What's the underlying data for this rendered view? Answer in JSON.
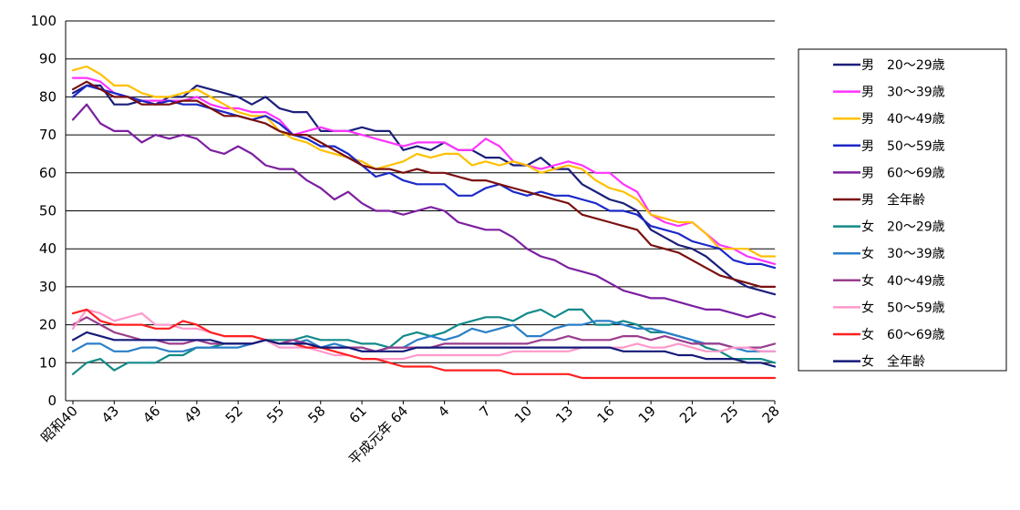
{
  "chart_data": {
    "type": "line",
    "title": "",
    "xlabel": "",
    "ylabel": "",
    "ylim": [
      0,
      100
    ],
    "yticks": [
      0,
      10,
      20,
      30,
      40,
      50,
      60,
      70,
      80,
      90,
      100
    ],
    "grid": "horizontal",
    "legend_position": "right",
    "x_tick_labels": [
      {
        "index": 0,
        "label": "昭和40"
      },
      {
        "index": 3,
        "label": "43"
      },
      {
        "index": 6,
        "label": "46"
      },
      {
        "index": 9,
        "label": "49"
      },
      {
        "index": 12,
        "label": "52"
      },
      {
        "index": 15,
        "label": "55"
      },
      {
        "index": 18,
        "label": "58"
      },
      {
        "index": 21,
        "label": "61"
      },
      {
        "index": 24,
        "label": "平成元年 64"
      },
      {
        "index": 27,
        "label": "4"
      },
      {
        "index": 30,
        "label": "7"
      },
      {
        "index": 33,
        "label": "10"
      },
      {
        "index": 36,
        "label": "13"
      },
      {
        "index": 39,
        "label": "16"
      },
      {
        "index": 42,
        "label": "19"
      },
      {
        "index": 45,
        "label": "22"
      },
      {
        "index": 48,
        "label": "25"
      },
      {
        "index": 51,
        "label": "28"
      }
    ],
    "series": [
      {
        "name": "男　20～29歳",
        "color": "#1b1f7a",
        "values": [
          81,
          83,
          83,
          78,
          78,
          79,
          78,
          80,
          80,
          83,
          82,
          81,
          80,
          78,
          80,
          77,
          76,
          76,
          71,
          71,
          71,
          72,
          71,
          71,
          66,
          67,
          66,
          68,
          66,
          66,
          64,
          64,
          62,
          62,
          64,
          61,
          61,
          57,
          55,
          53,
          52,
          50,
          45,
          43,
          41,
          40,
          38,
          35,
          32,
          30,
          29,
          28
        ]
      },
      {
        "name": "男　30～39歳",
        "color": "#ff33ff",
        "values": [
          85,
          85,
          84,
          81,
          80,
          79,
          79,
          79,
          79,
          80,
          78,
          77,
          77,
          76,
          76,
          74,
          70,
          71,
          72,
          71,
          71,
          70,
          69,
          68,
          67,
          68,
          68,
          68,
          66,
          66,
          69,
          67,
          63,
          62,
          61,
          62,
          63,
          62,
          60,
          60,
          57,
          55,
          49,
          47,
          46,
          47,
          44,
          41,
          40,
          38,
          37,
          36
        ]
      },
      {
        "name": "男　40～49歳",
        "color": "#ffc000",
        "values": [
          87,
          88,
          86,
          83,
          83,
          81,
          80,
          80,
          81,
          82,
          80,
          78,
          76,
          75,
          75,
          71,
          69,
          68,
          66,
          65,
          64,
          63,
          61,
          62,
          63,
          65,
          64,
          65,
          65,
          62,
          63,
          62,
          63,
          62,
          60,
          61,
          62,
          61,
          58,
          56,
          55,
          53,
          49,
          48,
          47,
          47,
          44,
          40,
          40,
          40,
          38,
          38
        ]
      },
      {
        "name": "男　50～59歳",
        "color": "#1a28c8",
        "values": [
          80,
          83,
          82,
          81,
          80,
          79,
          78,
          79,
          78,
          78,
          77,
          76,
          75,
          74,
          75,
          73,
          70,
          69,
          67,
          67,
          65,
          62,
          59,
          60,
          58,
          57,
          57,
          57,
          54,
          54,
          56,
          57,
          55,
          54,
          55,
          54,
          54,
          53,
          52,
          50,
          50,
          49,
          46,
          45,
          44,
          42,
          41,
          40,
          37,
          36,
          36,
          35
        ]
      },
      {
        "name": "男　60～69歳",
        "color": "#7c1fa0",
        "values": [
          74,
          78,
          73,
          71,
          71,
          68,
          70,
          69,
          70,
          69,
          66,
          65,
          67,
          65,
          62,
          61,
          61,
          58,
          56,
          53,
          55,
          52,
          50,
          50,
          49,
          50,
          51,
          50,
          47,
          46,
          45,
          45,
          43,
          40,
          38,
          37,
          35,
          34,
          33,
          31,
          29,
          28,
          27,
          27,
          26,
          25,
          24,
          24,
          23,
          22,
          23,
          22
        ]
      },
      {
        "name": "男　全年齢",
        "color": "#7a1010",
        "values": [
          82,
          84,
          82,
          80,
          80,
          78,
          78,
          78,
          79,
          79,
          77,
          75,
          75,
          74,
          73,
          71,
          70,
          70,
          68,
          66,
          64,
          62,
          61,
          61,
          60,
          61,
          60,
          60,
          59,
          58,
          58,
          57,
          56,
          55,
          54,
          53,
          52,
          49,
          48,
          47,
          46,
          45,
          41,
          40,
          39,
          37,
          35,
          33,
          32,
          31,
          30,
          30
        ]
      },
      {
        "name": "女　20～29歳",
        "color": "#138a8a",
        "values": [
          7,
          10,
          11,
          8,
          10,
          10,
          10,
          12,
          12,
          14,
          14,
          15,
          15,
          15,
          16,
          16,
          16,
          17,
          16,
          16,
          16,
          15,
          15,
          14,
          17,
          18,
          17,
          18,
          20,
          21,
          22,
          22,
          21,
          23,
          24,
          22,
          24,
          24,
          20,
          20,
          21,
          20,
          18,
          18,
          17,
          16,
          14,
          13,
          11,
          11,
          11,
          10
        ]
      },
      {
        "name": "女　30～39歳",
        "color": "#2a7fc8",
        "values": [
          13,
          15,
          15,
          13,
          13,
          14,
          14,
          13,
          13,
          14,
          14,
          14,
          14,
          15,
          16,
          15,
          15,
          16,
          14,
          15,
          14,
          13,
          13,
          14,
          14,
          16,
          17,
          16,
          17,
          19,
          18,
          19,
          20,
          17,
          17,
          19,
          20,
          20,
          21,
          21,
          20,
          19,
          19,
          18,
          17,
          16,
          15,
          15,
          14,
          13,
          13,
          13
        ]
      },
      {
        "name": "女　40～49歳",
        "color": "#9a3d8e",
        "values": [
          20,
          22,
          20,
          18,
          17,
          16,
          16,
          15,
          15,
          16,
          15,
          15,
          15,
          15,
          16,
          15,
          16,
          15,
          14,
          14,
          14,
          14,
          13,
          14,
          14,
          14,
          14,
          15,
          15,
          15,
          15,
          15,
          15,
          15,
          16,
          16,
          17,
          16,
          16,
          16,
          17,
          17,
          16,
          17,
          16,
          15,
          15,
          15,
          14,
          14,
          14,
          15
        ]
      },
      {
        "name": "女　50～59歳",
        "color": "#ff99cc",
        "values": [
          19,
          24,
          23,
          21,
          22,
          23,
          20,
          20,
          19,
          19,
          18,
          17,
          17,
          17,
          16,
          14,
          14,
          14,
          13,
          12,
          12,
          11,
          11,
          11,
          11,
          12,
          12,
          12,
          12,
          12,
          12,
          12,
          13,
          13,
          13,
          13,
          13,
          14,
          14,
          14,
          14,
          15,
          14,
          14,
          15,
          14,
          13,
          13,
          14,
          14,
          13,
          13
        ]
      },
      {
        "name": "女　60～69歳",
        "color": "#ff2020",
        "values": [
          23,
          24,
          21,
          20,
          20,
          20,
          19,
          19,
          21,
          20,
          18,
          17,
          17,
          17,
          16,
          15,
          15,
          14,
          14,
          13,
          12,
          11,
          11,
          10,
          9,
          9,
          9,
          8,
          8,
          8,
          8,
          8,
          7,
          7,
          7,
          7,
          7,
          6,
          6,
          6,
          6,
          6,
          6,
          6,
          6,
          6,
          6,
          6,
          6,
          6,
          6,
          6
        ]
      },
      {
        "name": "女　全年齢",
        "color": "#151a78",
        "values": [
          16,
          18,
          17,
          16,
          16,
          16,
          16,
          16,
          16,
          16,
          16,
          15,
          15,
          15,
          16,
          15,
          15,
          15,
          14,
          14,
          14,
          13,
          13,
          13,
          13,
          14,
          14,
          14,
          14,
          14,
          14,
          14,
          14,
          14,
          14,
          14,
          14,
          14,
          14,
          14,
          13,
          13,
          13,
          13,
          12,
          12,
          11,
          11,
          11,
          10,
          10,
          9
        ]
      }
    ]
  }
}
